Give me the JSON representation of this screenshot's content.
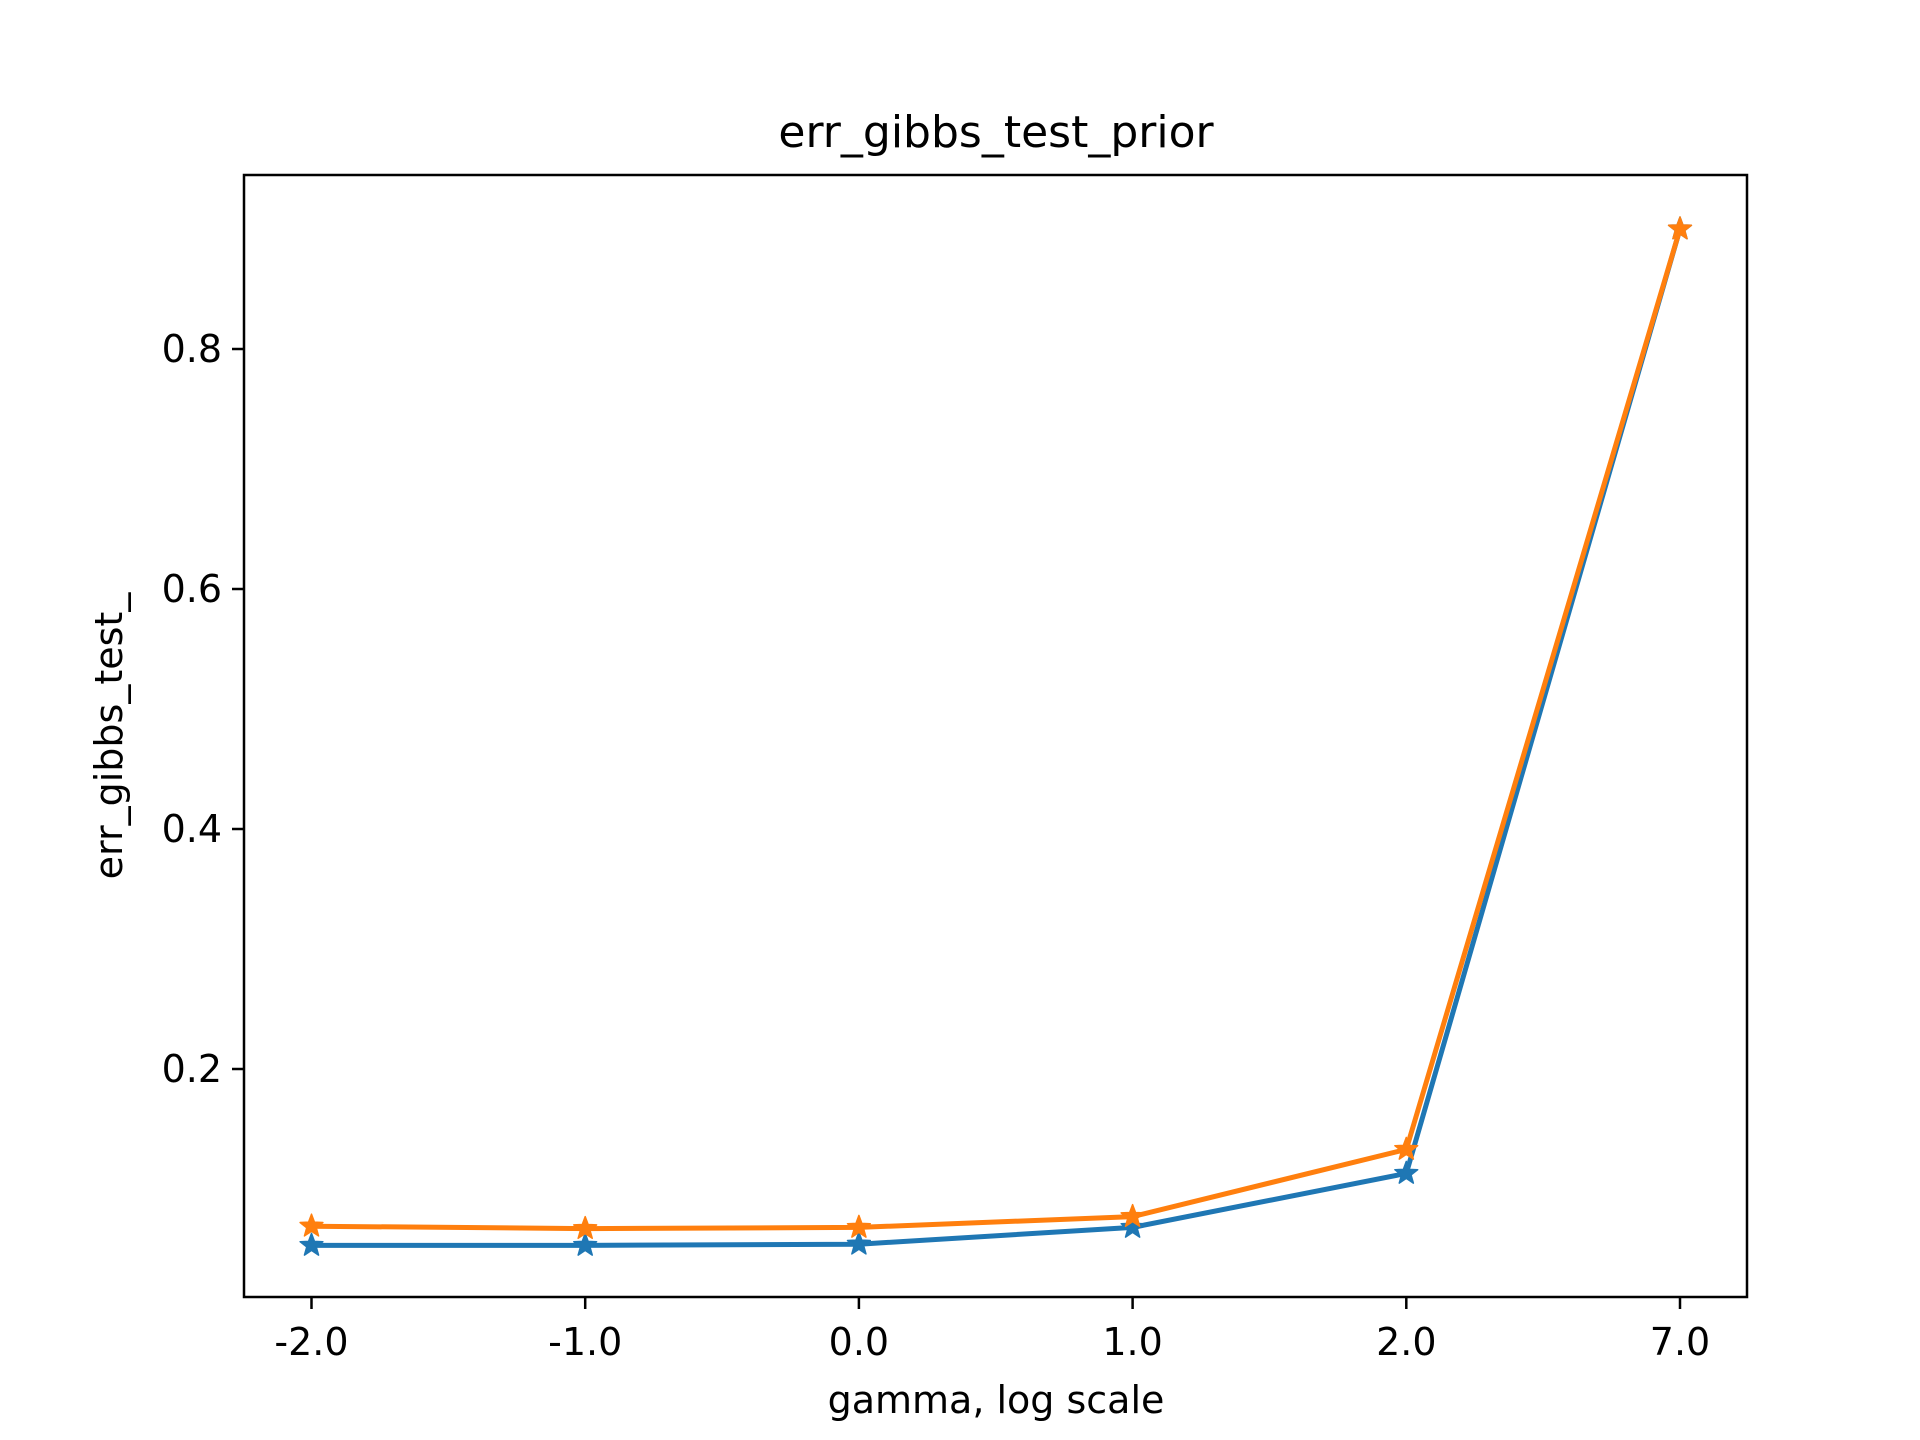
{
  "chart_data": {
    "type": "line",
    "title": "err_gibbs_test_prior",
    "xlabel": "gamma, log scale",
    "ylabel": "err_gibbs_test_",
    "categories": [
      "-2.0",
      "-1.0",
      "0.0",
      "1.0",
      "2.0",
      "7.0"
    ],
    "yticks": [
      0.2,
      0.4,
      0.6,
      0.8
    ],
    "ytick_labels": [
      "0.2",
      "0.4",
      "0.6",
      "0.8"
    ],
    "ylim": [
      0.01,
      0.945
    ],
    "marker": "star",
    "grid": false,
    "legend": "none",
    "series": [
      {
        "values": [
          0.053,
          0.053,
          0.054,
          0.068,
          0.113,
          0.9
        ],
        "color": "#1f77b4"
      },
      {
        "values": [
          0.069,
          0.067,
          0.068,
          0.077,
          0.133,
          0.9
        ],
        "color": "#ff7f0e"
      }
    ]
  }
}
